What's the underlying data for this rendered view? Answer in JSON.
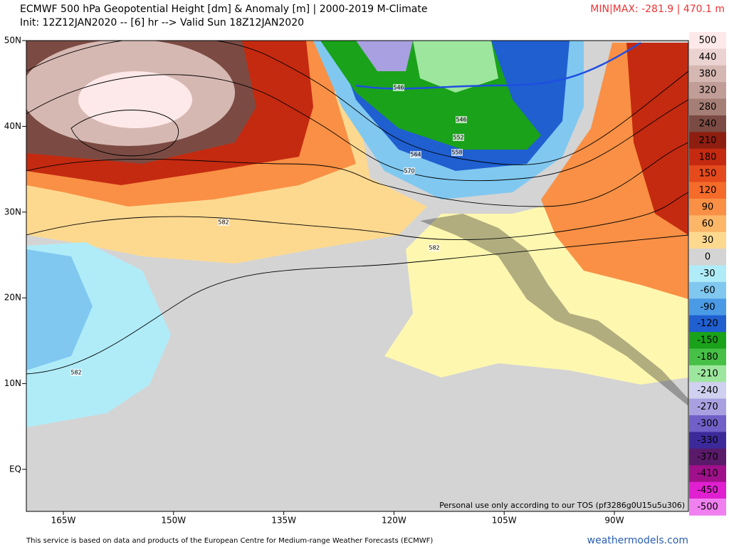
{
  "header": {
    "title": "ECMWF 500 hPa Geopotential Height [dm] & Anomaly [m] | 2000-2019 M-Climate",
    "subtitle": "Init: 12Z12JAN2020 -- [6] hr --> Valid Sun 18Z12JAN2020",
    "minmax": "MIN|MAX: -281.9 | 470.1 m"
  },
  "map": {
    "lat_labels": [
      "50N",
      "40N",
      "30N",
      "20N",
      "10N",
      "EQ"
    ],
    "lon_labels": [
      "165W",
      "150W",
      "135W",
      "120W",
      "105W",
      "90W"
    ],
    "contour_labels": [
      "546",
      "546",
      "552",
      "558",
      "564",
      "570",
      "582",
      "582",
      "582"
    ],
    "tos": "Personal use only according to our TOS (pf3286g0U15u5u306)"
  },
  "colorbar": {
    "labels": [
      500,
      440,
      380,
      320,
      280,
      240,
      210,
      180,
      150,
      120,
      90,
      60,
      30,
      0,
      -30,
      -60,
      -90,
      -120,
      -150,
      -180,
      -210,
      -240,
      -270,
      -300,
      -330,
      -370,
      -410,
      -450,
      -500
    ],
    "colors": [
      "#fde9e9",
      "#ead3d0",
      "#d6b8b2",
      "#c09d96",
      "#a57e76",
      "#7b4b43",
      "#8e1e10",
      "#c42a10",
      "#e44a1c",
      "#f46b2a",
      "#f99045",
      "#fcb668",
      "#fdd990",
      "#d4d4d4",
      "#b0ecf8",
      "#80c8f0",
      "#4a9ae6",
      "#1f5fd0",
      "#1aa21a",
      "#46c046",
      "#9de69d",
      "#d0d0f0",
      "#a8a0e0",
      "#7060c8",
      "#3c2a9a",
      "#5a1a6a",
      "#a0108a",
      "#e020d0",
      "#f080f0"
    ]
  },
  "footer": {
    "credit": "This service is based on data and products of the European Centre for Medium-range Weather Forecasts (ECMWF)",
    "site": "weathermodels.com"
  }
}
